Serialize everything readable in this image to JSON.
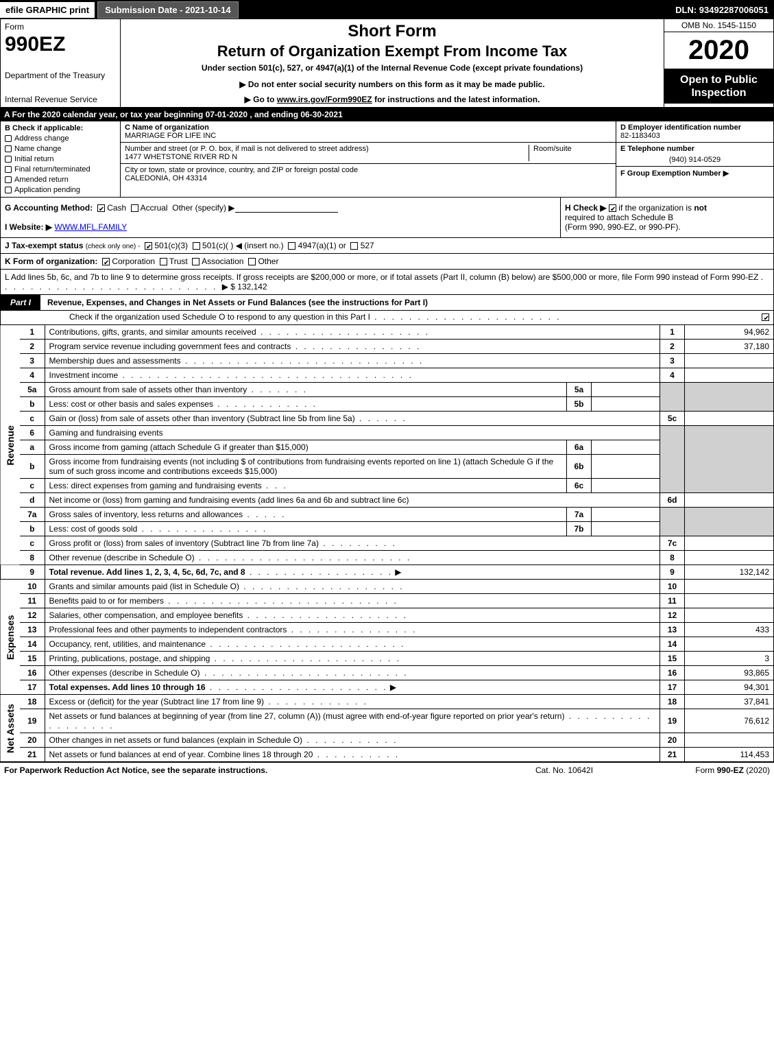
{
  "topbar": {
    "efile": "efile GRAPHIC print",
    "submission": "Submission Date - 2021-10-14",
    "dln": "DLN: 93492287006051"
  },
  "header": {
    "form_word": "Form",
    "form_num": "990EZ",
    "dept1": "Department of the Treasury",
    "dept2": "Internal Revenue Service",
    "short_form": "Short Form",
    "title": "Return of Organization Exempt From Income Tax",
    "under": "Under section 501(c), 527, or 4947(a)(1) of the Internal Revenue Code (except private foundations)",
    "donot": "▶ Do not enter social security numbers on this form as it may be made public.",
    "goto_pre": "▶ Go to ",
    "goto_link": "www.irs.gov/Form990EZ",
    "goto_post": " for instructions and the latest information.",
    "omb": "OMB No. 1545-1150",
    "year": "2020",
    "open": "Open to Public Inspection"
  },
  "row_a": "A For the 2020 calendar year, or tax year beginning 07-01-2020 , and ending 06-30-2021",
  "section_b": {
    "hdr": "B  Check if applicable:",
    "opts": [
      "Address change",
      "Name change",
      "Initial return",
      "Final return/terminated",
      "Amended return",
      "Application pending"
    ]
  },
  "section_c": {
    "name_lbl": "C Name of organization",
    "name": "MARRIAGE FOR LIFE INC",
    "addr_lbl": "Number and street (or P. O. box, if mail is not delivered to street address)",
    "room_lbl": "Room/suite",
    "addr": "1477 WHETSTONE RIVER RD N",
    "city_lbl": "City or town, state or province, country, and ZIP or foreign postal code",
    "city": "CALEDONIA, OH  43314"
  },
  "section_de": {
    "d_lbl": "D Employer identification number",
    "ein": "82-1183403",
    "e_lbl": "E Telephone number",
    "phone": "(940) 914-0529",
    "f_lbl": "F Group Exemption Number ▶"
  },
  "section_g": {
    "lbl": "G Accounting Method:",
    "cash": "Cash",
    "accrual": "Accrual",
    "other": "Other (specify) ▶"
  },
  "section_h": {
    "lbl": "H  Check ▶",
    "txt1": " if the organization is ",
    "not": "not",
    "txt2": " required to attach Schedule B",
    "txt3": "(Form 990, 990-EZ, or 990-PF)."
  },
  "row_i": {
    "lbl": "I Website: ▶",
    "val": "WWW.MFL.FAMILY"
  },
  "row_j": {
    "lbl": "J Tax-exempt status",
    "sub": "(check only one) -",
    "o1": "501(c)(3)",
    "o2": "501(c)(  ) ◀ (insert no.)",
    "o3": "4947(a)(1) or",
    "o4": "527"
  },
  "row_k": {
    "lbl": "K Form of organization:",
    "o1": "Corporation",
    "o2": "Trust",
    "o3": "Association",
    "o4": "Other"
  },
  "row_l": {
    "txt": "L Add lines 5b, 6c, and 7b to line 9 to determine gross receipts. If gross receipts are $200,000 or more, or if total assets (Part II, column (B) below) are $500,000 or more, file Form 990 instead of Form 990-EZ",
    "amount": "▶ $ 132,142"
  },
  "part1": {
    "tab": "Part I",
    "title": "Revenue, Expenses, and Changes in Net Assets or Fund Balances (see the instructions for Part I)",
    "sub": "Check if the organization used Schedule O to respond to any question in this Part I"
  },
  "sidelabels": {
    "rev": "Revenue",
    "exp": "Expenses",
    "na": "Net Assets"
  },
  "lines": {
    "l1": {
      "n": "1",
      "d": "Contributions, gifts, grants, and similar amounts received",
      "box": "1",
      "val": "94,962"
    },
    "l2": {
      "n": "2",
      "d": "Program service revenue including government fees and contracts",
      "box": "2",
      "val": "37,180"
    },
    "l3": {
      "n": "3",
      "d": "Membership dues and assessments",
      "box": "3",
      "val": ""
    },
    "l4": {
      "n": "4",
      "d": "Investment income",
      "box": "4",
      "val": ""
    },
    "l5a": {
      "n": "5a",
      "d": "Gross amount from sale of assets other than inventory",
      "sub": "5a"
    },
    "l5b": {
      "n": "b",
      "d": "Less: cost or other basis and sales expenses",
      "sub": "5b"
    },
    "l5c": {
      "n": "c",
      "d": "Gain or (loss) from sale of assets other than inventory (Subtract line 5b from line 5a)",
      "box": "5c",
      "val": ""
    },
    "l6": {
      "n": "6",
      "d": "Gaming and fundraising events"
    },
    "l6a": {
      "n": "a",
      "d": "Gross income from gaming (attach Schedule G if greater than $15,000)",
      "sub": "6a"
    },
    "l6b": {
      "n": "b",
      "d": "Gross income from fundraising events (not including $               of contributions from fundraising events reported on line 1) (attach Schedule G if the sum of such gross income and contributions exceeds $15,000)",
      "sub": "6b"
    },
    "l6c": {
      "n": "c",
      "d": "Less: direct expenses from gaming and fundraising events",
      "sub": "6c"
    },
    "l6d": {
      "n": "d",
      "d": "Net income or (loss) from gaming and fundraising events (add lines 6a and 6b and subtract line 6c)",
      "box": "6d",
      "val": ""
    },
    "l7a": {
      "n": "7a",
      "d": "Gross sales of inventory, less returns and allowances",
      "sub": "7a"
    },
    "l7b": {
      "n": "b",
      "d": "Less: cost of goods sold",
      "sub": "7b"
    },
    "l7c": {
      "n": "c",
      "d": "Gross profit or (loss) from sales of inventory (Subtract line 7b from line 7a)",
      "box": "7c",
      "val": ""
    },
    "l8": {
      "n": "8",
      "d": "Other revenue (describe in Schedule O)",
      "box": "8",
      "val": ""
    },
    "l9": {
      "n": "9",
      "d": "Total revenue. Add lines 1, 2, 3, 4, 5c, 6d, 7c, and 8",
      "box": "9",
      "val": "132,142",
      "bold": true,
      "arrow": true
    },
    "l10": {
      "n": "10",
      "d": "Grants and similar amounts paid (list in Schedule O)",
      "box": "10",
      "val": ""
    },
    "l11": {
      "n": "11",
      "d": "Benefits paid to or for members",
      "box": "11",
      "val": ""
    },
    "l12": {
      "n": "12",
      "d": "Salaries, other compensation, and employee benefits",
      "box": "12",
      "val": ""
    },
    "l13": {
      "n": "13",
      "d": "Professional fees and other payments to independent contractors",
      "box": "13",
      "val": "433"
    },
    "l14": {
      "n": "14",
      "d": "Occupancy, rent, utilities, and maintenance",
      "box": "14",
      "val": ""
    },
    "l15": {
      "n": "15",
      "d": "Printing, publications, postage, and shipping",
      "box": "15",
      "val": "3"
    },
    "l16": {
      "n": "16",
      "d": "Other expenses (describe in Schedule O)",
      "box": "16",
      "val": "93,865"
    },
    "l17": {
      "n": "17",
      "d": "Total expenses. Add lines 10 through 16",
      "box": "17",
      "val": "94,301",
      "bold": true,
      "arrow": true
    },
    "l18": {
      "n": "18",
      "d": "Excess or (deficit) for the year (Subtract line 17 from line 9)",
      "box": "18",
      "val": "37,841"
    },
    "l19": {
      "n": "19",
      "d": "Net assets or fund balances at beginning of year (from line 27, column (A)) (must agree with end-of-year figure reported on prior year's return)",
      "box": "19",
      "val": "76,612"
    },
    "l20": {
      "n": "20",
      "d": "Other changes in net assets or fund balances (explain in Schedule O)",
      "box": "20",
      "val": ""
    },
    "l21": {
      "n": "21",
      "d": "Net assets or fund balances at end of year. Combine lines 18 through 20",
      "box": "21",
      "val": "114,453"
    }
  },
  "footer": {
    "left": "For Paperwork Reduction Act Notice, see the separate instructions.",
    "mid": "Cat. No. 10642I",
    "right_pre": "Form ",
    "right_form": "990-EZ",
    "right_post": " (2020)"
  },
  "colors": {
    "black": "#000000",
    "white": "#ffffff",
    "shade": "#d0d0d0",
    "darkbtn": "#555555"
  }
}
